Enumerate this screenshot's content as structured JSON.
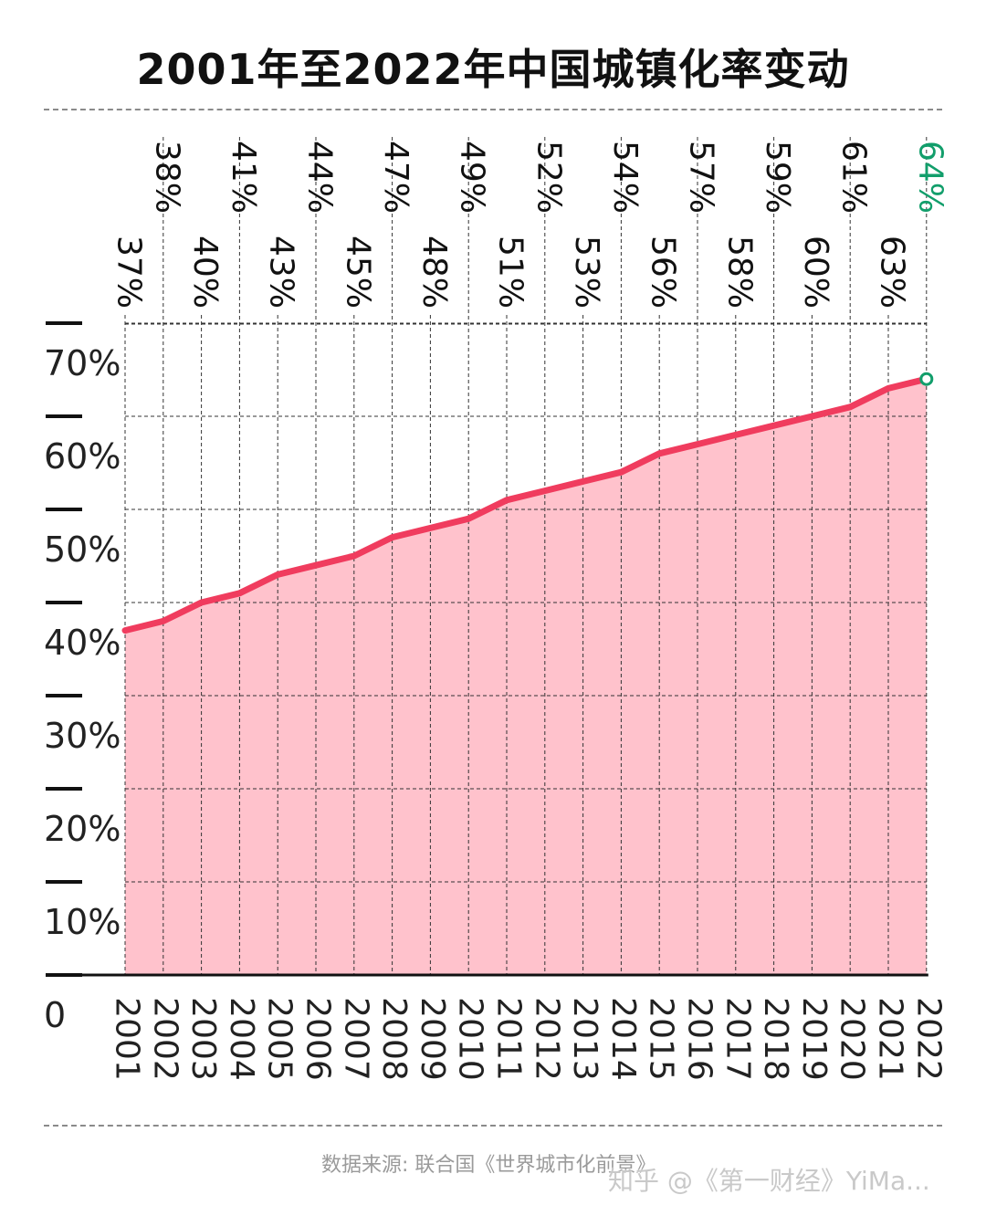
{
  "title": "2001年至2022年中国城镇化率变动",
  "source": "数据来源: 联合国《世界城市化前景》",
  "watermark": "知乎 @《第一财经》YiMa...",
  "colors": {
    "line": "#f03c5e",
    "fill": "#ffc2cc",
    "highlight": "#129e6b",
    "text": "#111111"
  },
  "chart_data": {
    "type": "area",
    "x": [
      "2001",
      "2002",
      "2003",
      "2004",
      "2005",
      "2006",
      "2007",
      "2008",
      "2009",
      "2010",
      "2011",
      "2012",
      "2013",
      "2014",
      "2015",
      "2016",
      "2017",
      "2018",
      "2019",
      "2020",
      "2021",
      "2022"
    ],
    "values": [
      37,
      38,
      40,
      41,
      43,
      44,
      45,
      47,
      48,
      49,
      51,
      52,
      53,
      54,
      56,
      57,
      58,
      59,
      60,
      61,
      63,
      64
    ],
    "value_labels": [
      "37%",
      "38%",
      "40%",
      "41%",
      "43%",
      "44%",
      "45%",
      "47%",
      "48%",
      "49%",
      "51%",
      "52%",
      "53%",
      "54%",
      "56%",
      "57%",
      "58%",
      "59%",
      "60%",
      "61%",
      "63%",
      "64%"
    ],
    "y_ticks": [
      "0",
      "10%",
      "20%",
      "30%",
      "40%",
      "50%",
      "60%",
      "70%"
    ],
    "y_tick_values": [
      0,
      10,
      20,
      30,
      40,
      50,
      60,
      70
    ],
    "ylim": [
      0,
      70
    ],
    "highlight_last": true,
    "grid": true
  }
}
